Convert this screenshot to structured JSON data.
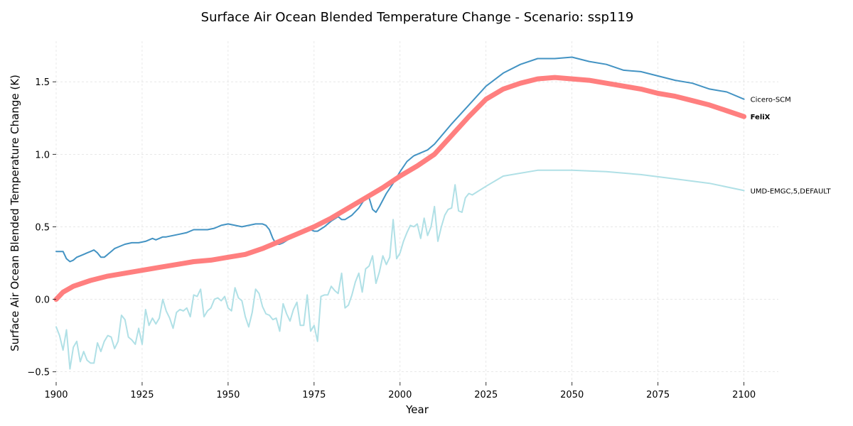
{
  "chart_data": {
    "type": "line",
    "title": "Surface Air Ocean Blended Temperature Change - Scenario: ssp119",
    "xlabel": "Year",
    "ylabel": "Surface Air Ocean Blended Temperature Change (K)",
    "xlim": [
      1900,
      2110
    ],
    "ylim": [
      -0.57,
      1.78
    ],
    "x_ticks": [
      1900,
      1925,
      1950,
      1975,
      2000,
      2025,
      2050,
      2075,
      2100
    ],
    "y_ticks": [
      -0.5,
      0.0,
      0.5,
      1.0,
      1.5
    ],
    "x_tick_labels": [
      "1900",
      "1925",
      "1950",
      "1975",
      "2000",
      "2025",
      "2050",
      "2075",
      "2100"
    ],
    "y_tick_labels": [
      "−0.5",
      "0.0",
      "0.5",
      "1.0",
      "1.5"
    ],
    "grid": true,
    "series": [
      {
        "name": "UMD-EMGC,5,DEFAULT",
        "color": "#b0e0e6",
        "width": 2,
        "bold_label": false,
        "points": [
          [
            1900,
            -0.19
          ],
          [
            1901,
            -0.25
          ],
          [
            1902,
            -0.35
          ],
          [
            1903,
            -0.21
          ],
          [
            1904,
            -0.48
          ],
          [
            1905,
            -0.33
          ],
          [
            1906,
            -0.29
          ],
          [
            1907,
            -0.43
          ],
          [
            1908,
            -0.36
          ],
          [
            1909,
            -0.42
          ],
          [
            1910,
            -0.44
          ],
          [
            1911,
            -0.44
          ],
          [
            1912,
            -0.3
          ],
          [
            1913,
            -0.36
          ],
          [
            1914,
            -0.29
          ],
          [
            1915,
            -0.25
          ],
          [
            1916,
            -0.26
          ],
          [
            1917,
            -0.34
          ],
          [
            1918,
            -0.29
          ],
          [
            1919,
            -0.11
          ],
          [
            1920,
            -0.14
          ],
          [
            1921,
            -0.26
          ],
          [
            1922,
            -0.28
          ],
          [
            1923,
            -0.31
          ],
          [
            1924,
            -0.2
          ],
          [
            1925,
            -0.31
          ],
          [
            1926,
            -0.07
          ],
          [
            1927,
            -0.18
          ],
          [
            1928,
            -0.13
          ],
          [
            1929,
            -0.17
          ],
          [
            1930,
            -0.13
          ],
          [
            1931,
            0.0
          ],
          [
            1932,
            -0.08
          ],
          [
            1933,
            -0.13
          ],
          [
            1934,
            -0.2
          ],
          [
            1935,
            -0.09
          ],
          [
            1936,
            -0.07
          ],
          [
            1937,
            -0.08
          ],
          [
            1938,
            -0.06
          ],
          [
            1939,
            -0.12
          ],
          [
            1940,
            0.03
          ],
          [
            1941,
            0.02
          ],
          [
            1942,
            0.07
          ],
          [
            1943,
            -0.12
          ],
          [
            1944,
            -0.08
          ],
          [
            1945,
            -0.06
          ],
          [
            1946,
            0.0
          ],
          [
            1947,
            0.01
          ],
          [
            1948,
            -0.01
          ],
          [
            1949,
            0.02
          ],
          [
            1950,
            -0.06
          ],
          [
            1951,
            -0.08
          ],
          [
            1952,
            0.08
          ],
          [
            1953,
            0.01
          ],
          [
            1954,
            -0.01
          ],
          [
            1955,
            -0.12
          ],
          [
            1956,
            -0.19
          ],
          [
            1957,
            -0.09
          ],
          [
            1958,
            0.07
          ],
          [
            1959,
            0.04
          ],
          [
            1960,
            -0.05
          ],
          [
            1961,
            -0.1
          ],
          [
            1962,
            -0.11
          ],
          [
            1963,
            -0.14
          ],
          [
            1964,
            -0.13
          ],
          [
            1965,
            -0.22
          ],
          [
            1966,
            -0.03
          ],
          [
            1967,
            -0.1
          ],
          [
            1968,
            -0.15
          ],
          [
            1969,
            -0.07
          ],
          [
            1970,
            -0.02
          ],
          [
            1971,
            -0.18
          ],
          [
            1972,
            -0.18
          ],
          [
            1973,
            0.03
          ],
          [
            1974,
            -0.22
          ],
          [
            1975,
            -0.18
          ],
          [
            1976,
            -0.29
          ],
          [
            1977,
            0.02
          ],
          [
            1978,
            0.03
          ],
          [
            1979,
            0.03
          ],
          [
            1980,
            0.09
          ],
          [
            1981,
            0.06
          ],
          [
            1982,
            0.04
          ],
          [
            1983,
            0.18
          ],
          [
            1984,
            -0.06
          ],
          [
            1985,
            -0.04
          ],
          [
            1986,
            0.03
          ],
          [
            1987,
            0.12
          ],
          [
            1988,
            0.18
          ],
          [
            1989,
            0.05
          ],
          [
            1990,
            0.21
          ],
          [
            1991,
            0.23
          ],
          [
            1992,
            0.3
          ],
          [
            1993,
            0.11
          ],
          [
            1994,
            0.19
          ],
          [
            1995,
            0.3
          ],
          [
            1996,
            0.24
          ],
          [
            1997,
            0.29
          ],
          [
            1998,
            0.55
          ],
          [
            1999,
            0.28
          ],
          [
            2000,
            0.32
          ],
          [
            2001,
            0.4
          ],
          [
            2002,
            0.46
          ],
          [
            2003,
            0.51
          ],
          [
            2004,
            0.5
          ],
          [
            2005,
            0.52
          ],
          [
            2006,
            0.42
          ],
          [
            2007,
            0.56
          ],
          [
            2008,
            0.44
          ],
          [
            2009,
            0.5
          ],
          [
            2010,
            0.64
          ],
          [
            2011,
            0.4
          ],
          [
            2012,
            0.5
          ],
          [
            2013,
            0.58
          ],
          [
            2014,
            0.62
          ],
          [
            2015,
            0.63
          ],
          [
            2016,
            0.79
          ],
          [
            2017,
            0.61
          ],
          [
            2018,
            0.6
          ],
          [
            2019,
            0.7
          ],
          [
            2020,
            0.73
          ],
          [
            2021,
            0.72
          ],
          [
            2025,
            0.78
          ],
          [
            2030,
            0.85
          ],
          [
            2040,
            0.89
          ],
          [
            2050,
            0.89
          ],
          [
            2060,
            0.88
          ],
          [
            2070,
            0.86
          ],
          [
            2080,
            0.83
          ],
          [
            2090,
            0.8
          ],
          [
            2100,
            0.75
          ]
        ]
      },
      {
        "name": "Cicero-SCM",
        "color": "#4393c3",
        "width": 2,
        "bold_label": false,
        "points": [
          [
            1900,
            0.33
          ],
          [
            1901,
            0.33
          ],
          [
            1902,
            0.33
          ],
          [
            1903,
            0.28
          ],
          [
            1904,
            0.26
          ],
          [
            1905,
            0.27
          ],
          [
            1906,
            0.29
          ],
          [
            1907,
            0.3
          ],
          [
            1908,
            0.31
          ],
          [
            1909,
            0.32
          ],
          [
            1910,
            0.33
          ],
          [
            1911,
            0.34
          ],
          [
            1912,
            0.32
          ],
          [
            1913,
            0.29
          ],
          [
            1914,
            0.29
          ],
          [
            1915,
            0.31
          ],
          [
            1916,
            0.33
          ],
          [
            1917,
            0.35
          ],
          [
            1918,
            0.36
          ],
          [
            1919,
            0.37
          ],
          [
            1920,
            0.38
          ],
          [
            1922,
            0.39
          ],
          [
            1924,
            0.39
          ],
          [
            1926,
            0.4
          ],
          [
            1928,
            0.42
          ],
          [
            1929,
            0.41
          ],
          [
            1930,
            0.42
          ],
          [
            1931,
            0.43
          ],
          [
            1932,
            0.43
          ],
          [
            1934,
            0.44
          ],
          [
            1936,
            0.45
          ],
          [
            1938,
            0.46
          ],
          [
            1940,
            0.48
          ],
          [
            1942,
            0.48
          ],
          [
            1944,
            0.48
          ],
          [
            1946,
            0.49
          ],
          [
            1948,
            0.51
          ],
          [
            1950,
            0.52
          ],
          [
            1952,
            0.51
          ],
          [
            1954,
            0.5
          ],
          [
            1956,
            0.51
          ],
          [
            1958,
            0.52
          ],
          [
            1960,
            0.52
          ],
          [
            1961,
            0.51
          ],
          [
            1962,
            0.48
          ],
          [
            1963,
            0.42
          ],
          [
            1964,
            0.38
          ],
          [
            1965,
            0.38
          ],
          [
            1966,
            0.39
          ],
          [
            1968,
            0.42
          ],
          [
            1970,
            0.44
          ],
          [
            1972,
            0.46
          ],
          [
            1974,
            0.48
          ],
          [
            1975,
            0.47
          ],
          [
            1976,
            0.47
          ],
          [
            1978,
            0.5
          ],
          [
            1980,
            0.54
          ],
          [
            1982,
            0.57
          ],
          [
            1983,
            0.55
          ],
          [
            1984,
            0.55
          ],
          [
            1986,
            0.58
          ],
          [
            1988,
            0.63
          ],
          [
            1990,
            0.7
          ],
          [
            1991,
            0.7
          ],
          [
            1992,
            0.62
          ],
          [
            1993,
            0.6
          ],
          [
            1994,
            0.64
          ],
          [
            1996,
            0.73
          ],
          [
            1998,
            0.8
          ],
          [
            2000,
            0.88
          ],
          [
            2002,
            0.95
          ],
          [
            2004,
            0.99
          ],
          [
            2006,
            1.01
          ],
          [
            2008,
            1.03
          ],
          [
            2010,
            1.07
          ],
          [
            2015,
            1.21
          ],
          [
            2020,
            1.34
          ],
          [
            2025,
            1.47
          ],
          [
            2030,
            1.56
          ],
          [
            2035,
            1.62
          ],
          [
            2040,
            1.66
          ],
          [
            2045,
            1.66
          ],
          [
            2050,
            1.67
          ],
          [
            2055,
            1.64
          ],
          [
            2060,
            1.62
          ],
          [
            2065,
            1.58
          ],
          [
            2070,
            1.57
          ],
          [
            2075,
            1.54
          ],
          [
            2080,
            1.51
          ],
          [
            2085,
            1.49
          ],
          [
            2090,
            1.45
          ],
          [
            2095,
            1.43
          ],
          [
            2100,
            1.38
          ]
        ]
      },
      {
        "name": "FeliX",
        "color": "#ff7f7f",
        "width": 7,
        "bold_label": true,
        "points": [
          [
            1900,
            0.0
          ],
          [
            1902,
            0.05
          ],
          [
            1905,
            0.09
          ],
          [
            1910,
            0.13
          ],
          [
            1915,
            0.16
          ],
          [
            1920,
            0.18
          ],
          [
            1925,
            0.2
          ],
          [
            1930,
            0.22
          ],
          [
            1935,
            0.24
          ],
          [
            1940,
            0.26
          ],
          [
            1945,
            0.27
          ],
          [
            1950,
            0.29
          ],
          [
            1955,
            0.31
          ],
          [
            1960,
            0.35
          ],
          [
            1965,
            0.4
          ],
          [
            1970,
            0.45
          ],
          [
            1975,
            0.5
          ],
          [
            1980,
            0.56
          ],
          [
            1985,
            0.63
          ],
          [
            1990,
            0.7
          ],
          [
            1995,
            0.77
          ],
          [
            2000,
            0.85
          ],
          [
            2005,
            0.92
          ],
          [
            2010,
            1.0
          ],
          [
            2015,
            1.13
          ],
          [
            2020,
            1.26
          ],
          [
            2025,
            1.38
          ],
          [
            2030,
            1.45
          ],
          [
            2035,
            1.49
          ],
          [
            2040,
            1.52
          ],
          [
            2045,
            1.53
          ],
          [
            2050,
            1.52
          ],
          [
            2055,
            1.51
          ],
          [
            2060,
            1.49
          ],
          [
            2065,
            1.47
          ],
          [
            2070,
            1.45
          ],
          [
            2075,
            1.42
          ],
          [
            2080,
            1.4
          ],
          [
            2085,
            1.37
          ],
          [
            2090,
            1.34
          ],
          [
            2095,
            1.3
          ],
          [
            2100,
            1.26
          ]
        ]
      }
    ]
  }
}
